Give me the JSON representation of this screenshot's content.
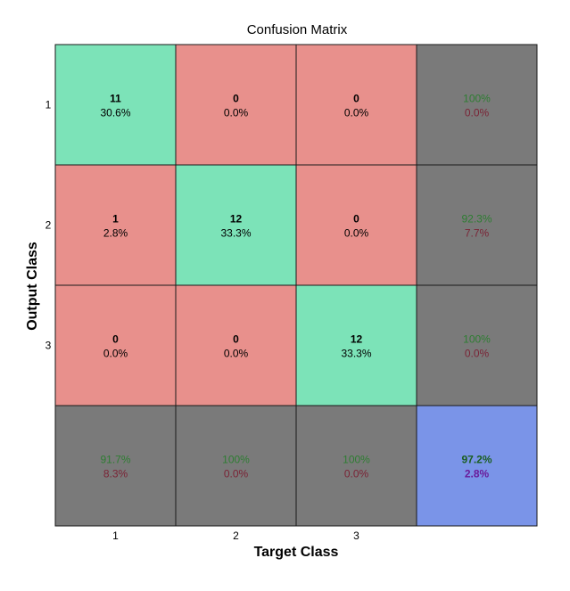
{
  "colors": {
    "correct": "#7ce3b8",
    "incorrect": "#e8908c",
    "summary": "#7a7a7a",
    "overall": "#7a94e8",
    "summary_good_text": "#2e7d32",
    "summary_bad_text": "#7a2436",
    "overall_good_text": "#1b5e20",
    "overall_bad_text": "#6a1b9a",
    "grid": "#1a1a1a"
  },
  "chart_data": {
    "type": "heatmap",
    "title": "Confusion Matrix",
    "xlabel": "Target Class",
    "ylabel": "Output Class",
    "x_ticks": [
      "1",
      "2",
      "3"
    ],
    "y_ticks": [
      "1",
      "2",
      "3"
    ],
    "cells": [
      [
        {
          "count": "11",
          "percent": "30.6%"
        },
        {
          "count": "0",
          "percent": "0.0%"
        },
        {
          "count": "0",
          "percent": "0.0%"
        }
      ],
      [
        {
          "count": "1",
          "percent": "2.8%"
        },
        {
          "count": "12",
          "percent": "33.3%"
        },
        {
          "count": "0",
          "percent": "0.0%"
        }
      ],
      [
        {
          "count": "0",
          "percent": "0.0%"
        },
        {
          "count": "0",
          "percent": "0.0%"
        },
        {
          "count": "12",
          "percent": "33.3%"
        }
      ]
    ],
    "row_summary": [
      {
        "correct": "100%",
        "incorrect": "0.0%"
      },
      {
        "correct": "92.3%",
        "incorrect": "7.7%"
      },
      {
        "correct": "100%",
        "incorrect": "0.0%"
      }
    ],
    "col_summary": [
      {
        "correct": "91.7%",
        "incorrect": "8.3%"
      },
      {
        "correct": "100%",
        "incorrect": "0.0%"
      },
      {
        "correct": "100%",
        "incorrect": "0.0%"
      }
    ],
    "overall": {
      "correct": "97.2%",
      "incorrect": "2.8%"
    }
  }
}
